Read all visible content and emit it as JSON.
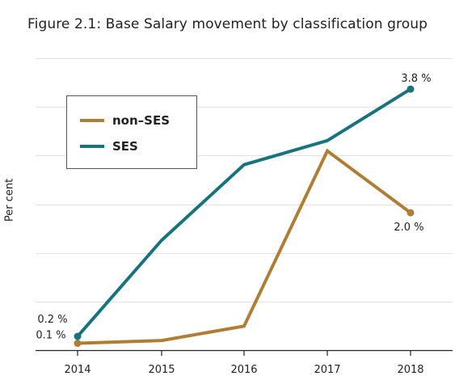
{
  "chart_data": {
    "type": "line",
    "title": "Figure 2.1: Base Salary movement by classification group",
    "xlabel": "",
    "ylabel": "Per cent",
    "x": [
      "2014",
      "2015",
      "2016",
      "2017",
      "2018"
    ],
    "ylim": [
      0,
      4.25
    ],
    "grid": true,
    "legend_position": "top-left",
    "series": [
      {
        "name": "non–SES",
        "color": "#b07d35",
        "values": [
          0.1,
          0.14,
          0.35,
          2.9,
          2.0
        ],
        "labels": {
          "0": "0.1 %",
          "4": "2.0 %"
        }
      },
      {
        "name": "SES",
        "color": "#17737d",
        "values": [
          0.2,
          1.6,
          2.7,
          3.05,
          3.8
        ],
        "labels": {
          "0": "0.2 %",
          "4": "3.8 %"
        }
      }
    ]
  }
}
